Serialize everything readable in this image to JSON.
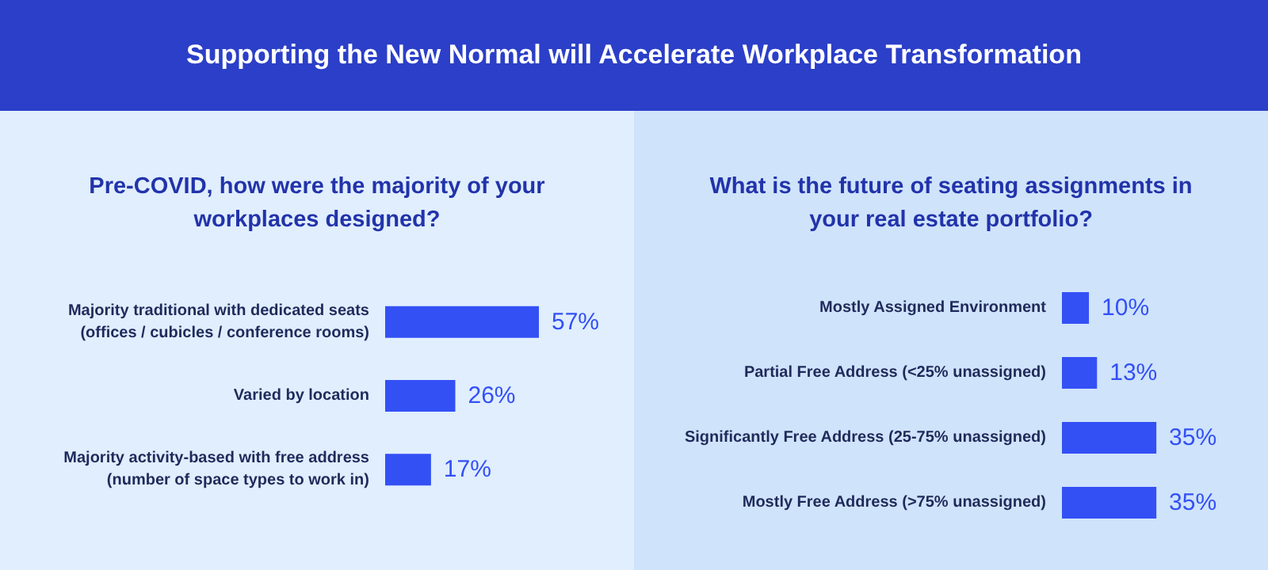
{
  "chart_data": [
    {
      "type": "bar",
      "orientation": "horizontal",
      "title": "Supporting the New Normal will Accelerate Workplace Transformation",
      "subtitle": "Pre-COVID, how were the majority of your workplaces designed?",
      "categories": [
        "Majority traditional with dedicated seats\n(offices / cubicles / conference rooms)",
        "Varied by location",
        "Majority activity-based with free address\n(number of space types to work in)"
      ],
      "values": [
        57,
        26,
        17
      ],
      "value_labels": [
        "57%",
        "26%",
        "17%"
      ],
      "color": "#3350f5"
    },
    {
      "type": "bar",
      "orientation": "horizontal",
      "subtitle": "What is the future of seating assignments in your real estate portfolio?",
      "categories": [
        "Mostly Assigned Environment",
        "Partial Free Address (<25% unassigned)",
        "Significantly Free Address (25-75% unassigned)",
        "Mostly Free Address (>75% unassigned)"
      ],
      "values": [
        10,
        13,
        35,
        35
      ],
      "value_labels": [
        "10%",
        "13%",
        "35%",
        "35%"
      ],
      "color": "#3350f5"
    }
  ]
}
